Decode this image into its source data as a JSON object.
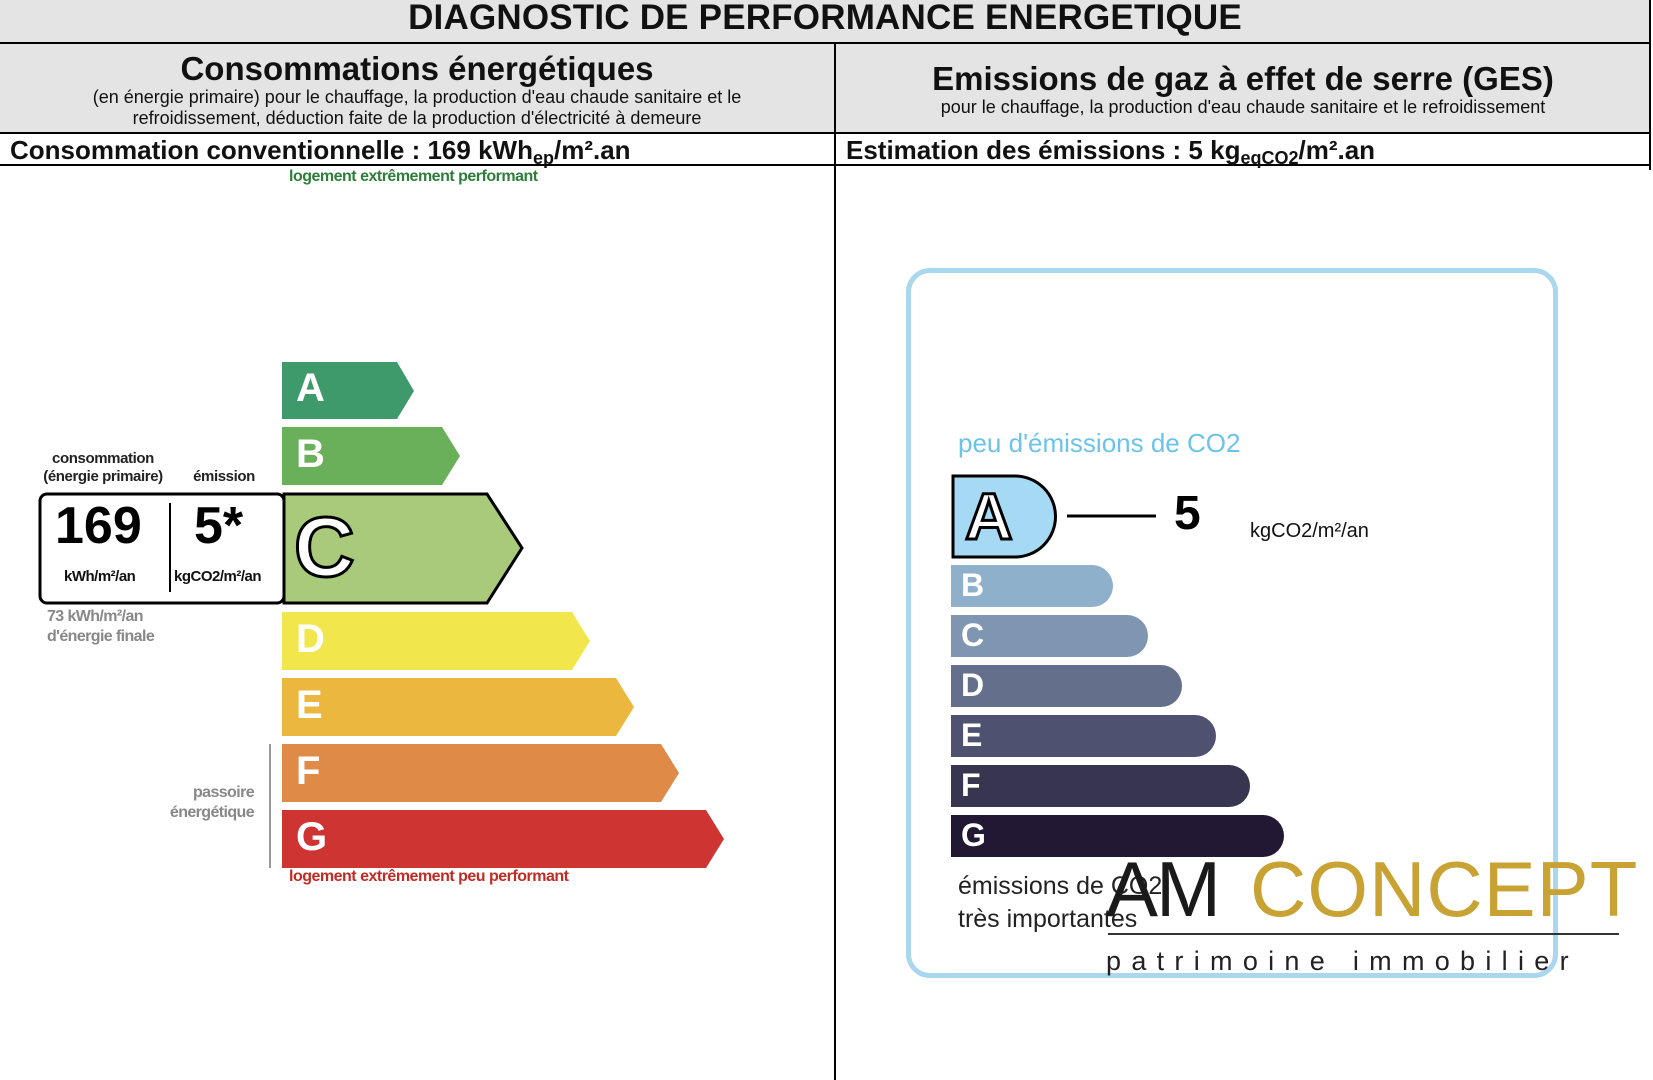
{
  "title": "DIAGNOSTIC DE PERFORMANCE ENERGETIQUE",
  "energy": {
    "heading": "Consommations énergétiques",
    "subtitle_line1": "(en énergie primaire) pour le chauffage, la production d'eau chaude sanitaire et le",
    "subtitle_line2": "refroidissement, déduction faite de la production d'électricité à demeure",
    "summary_prefix": "Consommation conventionnelle : 169 kWh",
    "summary_sub": "ep",
    "summary_suffix": "/m².an",
    "label_top": "logement extrêmement performant",
    "label_bottom": "logement extrêmement peu performant",
    "classes": [
      "A",
      "B",
      "C",
      "D",
      "E",
      "F",
      "G"
    ],
    "class_colors": [
      "#3f9a6b",
      "#6aaf5a",
      "#a9ca7b",
      "#f1e74c",
      "#ebb73f",
      "#e08a48",
      "#cd3432"
    ],
    "current_class": "C",
    "consumption_label_line1": "consommation",
    "consumption_label_line2": "(énergie primaire)",
    "emission_label": "émission",
    "consumption_value": "169",
    "consumption_unit": "kWh/m²/an",
    "emission_value": "5*",
    "emission_unit": "kgCO2/m²/an",
    "final_energy_line1": "73 kWh/m²/an",
    "final_energy_line2": "d'énergie finale",
    "passoire_line1": "passoire",
    "passoire_line2": "énergétique"
  },
  "ges": {
    "heading": "Emissions de gaz à effet de serre (GES)",
    "subtitle": "pour le chauffage, la production d'eau chaude sanitaire et le refroidissement",
    "summary_prefix": "Estimation des émissions : 5 kg",
    "summary_sub": "eqCO2",
    "summary_suffix": "/m².an",
    "label_top": "peu d'émissions de CO2",
    "label_bottom_line1": "émissions de CO2",
    "label_bottom_line2": "très importantes",
    "classes": [
      "A",
      "B",
      "C",
      "D",
      "E",
      "F",
      "G"
    ],
    "class_colors": [
      "#a6d9f3",
      "#8fb0cb",
      "#7f96b2",
      "#646f8c",
      "#4e5270",
      "#383551",
      "#231834"
    ],
    "current_class": "A",
    "value": "5",
    "unit": "kgCO2/m²/an"
  },
  "logo": {
    "part1": "AM",
    "part2": "CONCEPT",
    "tagline": "patrimoine immobilier",
    "color_gold": "#c8a233"
  }
}
